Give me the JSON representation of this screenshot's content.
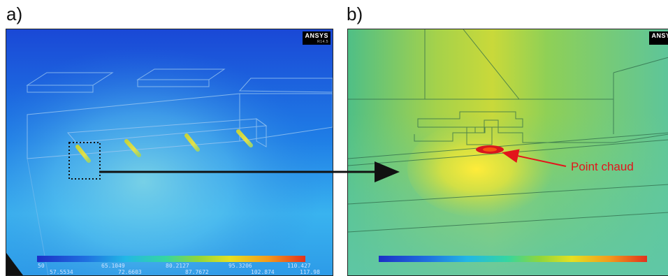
{
  "panel_a": {
    "label": "a)",
    "logo": "ANSYS",
    "logo_version": "R14.5",
    "legend_ticks_top": [
      "50",
      "65.1049",
      "80.2127",
      "95.3206",
      "110.427"
    ],
    "legend_ticks_bottom": [
      "57.5534",
      "72.6603",
      "87.7672",
      "102.874",
      "117.98"
    ]
  },
  "panel_b": {
    "label": "b)",
    "logo": "ANSYS",
    "callout": "Point chaud"
  },
  "colors": {
    "arrow_black": "#111111",
    "arrow_red": "#e3141b",
    "hot_spot": "#d9161e"
  }
}
